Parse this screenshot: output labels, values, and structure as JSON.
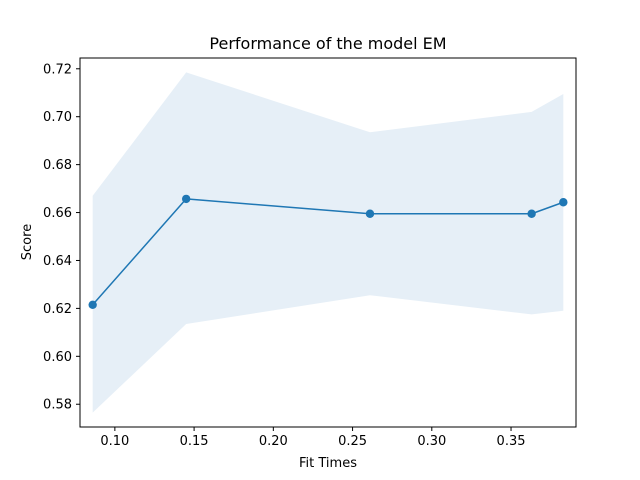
{
  "chart_data": {
    "type": "line",
    "title": "Performance of the model EM",
    "xlabel": "Fit Times",
    "ylabel": "Score",
    "xlim": [
      0.078,
      0.391
    ],
    "ylim": [
      0.5705,
      0.7245
    ],
    "xticks": [
      0.1,
      0.15,
      0.2,
      0.25,
      0.3,
      0.35
    ],
    "xtick_labels": [
      "0.10",
      "0.15",
      "0.20",
      "0.25",
      "0.30",
      "0.35"
    ],
    "yticks": [
      0.58,
      0.6,
      0.62,
      0.64,
      0.66,
      0.68,
      0.7,
      0.72
    ],
    "ytick_labels": [
      "0.58",
      "0.60",
      "0.62",
      "0.64",
      "0.66",
      "0.68",
      "0.70",
      "0.72"
    ],
    "grid": false,
    "series": [
      {
        "x": [
          0.086,
          0.145,
          0.261,
          0.363,
          0.383
        ],
        "y": [
          0.6215,
          0.6657,
          0.6595,
          0.6595,
          0.6643
        ],
        "lower": [
          0.5765,
          0.6135,
          0.6255,
          0.6175,
          0.619
        ],
        "upper": [
          0.667,
          0.7185,
          0.6935,
          0.702,
          0.7095
        ],
        "color": "#1f77b4",
        "band_color": "#e6eff7"
      }
    ]
  }
}
